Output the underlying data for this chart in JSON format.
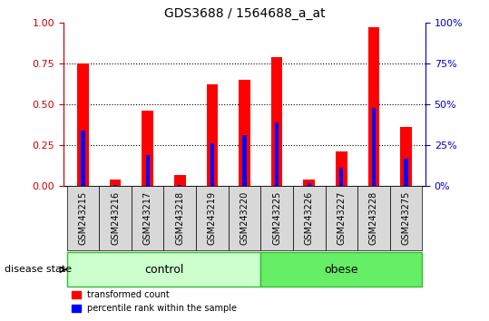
{
  "title": "GDS3688 / 1564688_a_at",
  "samples": [
    "GSM243215",
    "GSM243216",
    "GSM243217",
    "GSM243218",
    "GSM243219",
    "GSM243220",
    "GSM243225",
    "GSM243226",
    "GSM243227",
    "GSM243228",
    "GSM243275"
  ],
  "red_values": [
    0.75,
    0.04,
    0.46,
    0.07,
    0.62,
    0.65,
    0.79,
    0.04,
    0.21,
    0.97,
    0.36
  ],
  "blue_values": [
    0.34,
    0.01,
    0.19,
    0.01,
    0.26,
    0.31,
    0.39,
    0.02,
    0.11,
    0.48,
    0.17
  ],
  "control_indices": [
    0,
    1,
    2,
    3,
    4,
    5
  ],
  "obese_indices": [
    6,
    7,
    8,
    9,
    10
  ],
  "control_label": "control",
  "obese_label": "obese",
  "disease_state_label": "disease state",
  "legend_red": "transformed count",
  "legend_blue": "percentile rank within the sample",
  "ylim_left": [
    0,
    1
  ],
  "ylim_right": [
    0,
    100
  ],
  "yticks_left": [
    0,
    0.25,
    0.5,
    0.75,
    1.0
  ],
  "yticks_right": [
    0,
    25,
    50,
    75,
    100
  ],
  "bar_width": 0.35,
  "blue_bar_width": 0.12,
  "right_axis_color": "#0000cc",
  "left_axis_color": "#cc0000",
  "cell_color": "#d8d8d8",
  "control_fill": "#ccffcc",
  "obese_fill": "#66ee66",
  "group_border": "#33bb33"
}
